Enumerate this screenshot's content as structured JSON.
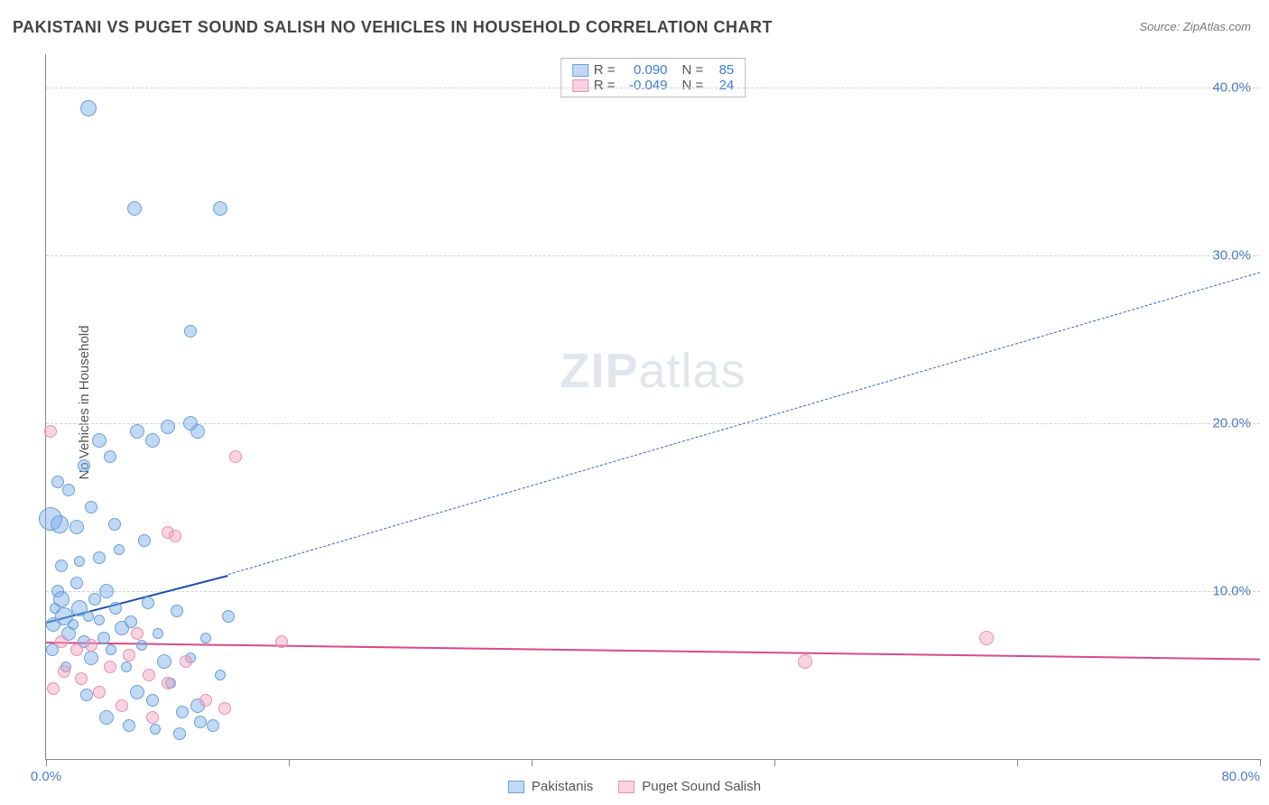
{
  "title": "PAKISTANI VS PUGET SOUND SALISH NO VEHICLES IN HOUSEHOLD CORRELATION CHART",
  "source": "Source: ZipAtlas.com",
  "ylabel": "No Vehicles in Household",
  "watermark_a": "ZIP",
  "watermark_b": "atlas",
  "chart": {
    "type": "scatter",
    "xlim": [
      0,
      80
    ],
    "ylim": [
      0,
      42
    ],
    "background_color": "#ffffff",
    "grid_color": "#d0d0d0",
    "axis_color": "#888888",
    "tick_label_color": "#4a7bc8",
    "tick_fontsize": 15,
    "ylabel_fontsize": 15,
    "yticks": [
      10,
      20,
      30,
      40
    ],
    "ytick_labels": [
      "10.0%",
      "20.0%",
      "30.0%",
      "40.0%"
    ],
    "xticks": [
      0,
      16,
      32,
      48,
      64,
      80
    ],
    "xtick_labels_shown": {
      "0": "0.0%",
      "80": "80.0%"
    }
  },
  "series": [
    {
      "name": "Pakistanis",
      "fill_color": "rgba(120,170,230,0.45)",
      "stroke_color": "#6aa0d8",
      "R": "0.090",
      "N": "85",
      "regression": {
        "solid": {
          "x1": 0,
          "y1": 8.2,
          "x2": 12,
          "y2": 11.0,
          "color": "#1d4fb0",
          "width": 2.5
        },
        "dashed": {
          "x1": 12,
          "y1": 11.0,
          "x2": 80,
          "y2": 29.0,
          "color": "#2f63c8",
          "width": 1.5,
          "dash": true
        }
      },
      "points": [
        {
          "x": 0.5,
          "y": 8,
          "r": 8
        },
        {
          "x": 0.6,
          "y": 9,
          "r": 6
        },
        {
          "x": 0.8,
          "y": 10,
          "r": 7
        },
        {
          "x": 1,
          "y": 9.5,
          "r": 9
        },
        {
          "x": 1.2,
          "y": 8.5,
          "r": 10
        },
        {
          "x": 1.5,
          "y": 7.5,
          "r": 8
        },
        {
          "x": 1.8,
          "y": 8,
          "r": 6
        },
        {
          "x": 2,
          "y": 10.5,
          "r": 7
        },
        {
          "x": 2.2,
          "y": 9,
          "r": 9
        },
        {
          "x": 2.5,
          "y": 7,
          "r": 7
        },
        {
          "x": 2.8,
          "y": 8.5,
          "r": 6
        },
        {
          "x": 3,
          "y": 6,
          "r": 8
        },
        {
          "x": 3.2,
          "y": 9.5,
          "r": 7
        },
        {
          "x": 3.5,
          "y": 8.3,
          "r": 6
        },
        {
          "x": 3.8,
          "y": 7.2,
          "r": 7
        },
        {
          "x": 4,
          "y": 10,
          "r": 8
        },
        {
          "x": 4.3,
          "y": 6.5,
          "r": 6
        },
        {
          "x": 4.6,
          "y": 9,
          "r": 7
        },
        {
          "x": 5,
          "y": 7.8,
          "r": 8
        },
        {
          "x": 5.3,
          "y": 5.5,
          "r": 6
        },
        {
          "x": 5.6,
          "y": 8.2,
          "r": 7
        },
        {
          "x": 6,
          "y": 4,
          "r": 8
        },
        {
          "x": 6.3,
          "y": 6.8,
          "r": 6
        },
        {
          "x": 6.7,
          "y": 9.3,
          "r": 7
        },
        {
          "x": 7,
          "y": 3.5,
          "r": 7
        },
        {
          "x": 7.4,
          "y": 7.5,
          "r": 6
        },
        {
          "x": 7.8,
          "y": 5.8,
          "r": 8
        },
        {
          "x": 8.2,
          "y": 4.5,
          "r": 6
        },
        {
          "x": 8.6,
          "y": 8.8,
          "r": 7
        },
        {
          "x": 9,
          "y": 2.8,
          "r": 7
        },
        {
          "x": 9.5,
          "y": 6,
          "r": 6
        },
        {
          "x": 10,
          "y": 3.2,
          "r": 8
        },
        {
          "x": 10.5,
          "y": 7.2,
          "r": 6
        },
        {
          "x": 11,
          "y": 2,
          "r": 7
        },
        {
          "x": 11.5,
          "y": 5,
          "r": 6
        },
        {
          "x": 12,
          "y": 8.5,
          "r": 7
        },
        {
          "x": 0.9,
          "y": 14,
          "r": 10
        },
        {
          "x": 0.3,
          "y": 14.3,
          "r": 13
        },
        {
          "x": 2,
          "y": 13.8,
          "r": 8
        },
        {
          "x": 4.5,
          "y": 14,
          "r": 7
        },
        {
          "x": 6.5,
          "y": 13,
          "r": 7
        },
        {
          "x": 3,
          "y": 15,
          "r": 7
        },
        {
          "x": 1.5,
          "y": 16,
          "r": 7
        },
        {
          "x": 0.8,
          "y": 16.5,
          "r": 7
        },
        {
          "x": 2.5,
          "y": 17.5,
          "r": 7
        },
        {
          "x": 4.2,
          "y": 18,
          "r": 7
        },
        {
          "x": 3.5,
          "y": 19,
          "r": 8
        },
        {
          "x": 7,
          "y": 19,
          "r": 8
        },
        {
          "x": 10,
          "y": 19.5,
          "r": 8
        },
        {
          "x": 6,
          "y": 19.5,
          "r": 8
        },
        {
          "x": 8,
          "y": 19.8,
          "r": 8
        },
        {
          "x": 9.5,
          "y": 20,
          "r": 8
        },
        {
          "x": 2.8,
          "y": 38.8,
          "r": 9
        },
        {
          "x": 5.8,
          "y": 32.8,
          "r": 8
        },
        {
          "x": 11.5,
          "y": 32.8,
          "r": 8
        },
        {
          "x": 9.5,
          "y": 25.5,
          "r": 7
        },
        {
          "x": 1,
          "y": 11.5,
          "r": 7
        },
        {
          "x": 2.2,
          "y": 11.8,
          "r": 6
        },
        {
          "x": 3.5,
          "y": 12,
          "r": 7
        },
        {
          "x": 4.8,
          "y": 12.5,
          "r": 6
        },
        {
          "x": 0.4,
          "y": 6.5,
          "r": 7
        },
        {
          "x": 1.3,
          "y": 5.5,
          "r": 6
        },
        {
          "x": 2.7,
          "y": 3.8,
          "r": 7
        },
        {
          "x": 4,
          "y": 2.5,
          "r": 8
        },
        {
          "x": 5.5,
          "y": 2,
          "r": 7
        },
        {
          "x": 7.2,
          "y": 1.8,
          "r": 6
        },
        {
          "x": 8.8,
          "y": 1.5,
          "r": 7
        },
        {
          "x": 10.2,
          "y": 2.2,
          "r": 7
        }
      ]
    },
    {
      "name": "Puget Sound Salish",
      "fill_color": "rgba(240,160,190,0.45)",
      "stroke_color": "#e88fb0",
      "R": "-0.049",
      "N": "24",
      "regression": {
        "solid": {
          "x1": 0,
          "y1": 7.0,
          "x2": 80,
          "y2": 6.0,
          "color": "#d84a8a",
          "width": 2.5
        }
      },
      "points": [
        {
          "x": 0.3,
          "y": 19.5,
          "r": 7
        },
        {
          "x": 12.5,
          "y": 18,
          "r": 7
        },
        {
          "x": 8,
          "y": 13.5,
          "r": 7
        },
        {
          "x": 8.5,
          "y": 13.3,
          "r": 7
        },
        {
          "x": 1,
          "y": 7,
          "r": 7
        },
        {
          "x": 2,
          "y": 6.5,
          "r": 7
        },
        {
          "x": 3,
          "y": 6.8,
          "r": 7
        },
        {
          "x": 4.2,
          "y": 5.5,
          "r": 7
        },
        {
          "x": 5.5,
          "y": 6.2,
          "r": 7
        },
        {
          "x": 6.8,
          "y": 5,
          "r": 7
        },
        {
          "x": 8,
          "y": 4.5,
          "r": 7
        },
        {
          "x": 9.2,
          "y": 5.8,
          "r": 7
        },
        {
          "x": 10.5,
          "y": 3.5,
          "r": 7
        },
        {
          "x": 11.8,
          "y": 3,
          "r": 7
        },
        {
          "x": 7,
          "y": 2.5,
          "r": 7
        },
        {
          "x": 5,
          "y": 3.2,
          "r": 7
        },
        {
          "x": 3.5,
          "y": 4,
          "r": 7
        },
        {
          "x": 2.3,
          "y": 4.8,
          "r": 7
        },
        {
          "x": 1.2,
          "y": 5.2,
          "r": 7
        },
        {
          "x": 0.5,
          "y": 4.2,
          "r": 7
        },
        {
          "x": 15.5,
          "y": 7,
          "r": 7
        },
        {
          "x": 50,
          "y": 5.8,
          "r": 8
        },
        {
          "x": 62,
          "y": 7.2,
          "r": 8
        },
        {
          "x": 6,
          "y": 7.5,
          "r": 7
        }
      ]
    }
  ],
  "bottom_legend": [
    {
      "label": "Pakistanis"
    },
    {
      "label": "Puget Sound Salish"
    }
  ]
}
